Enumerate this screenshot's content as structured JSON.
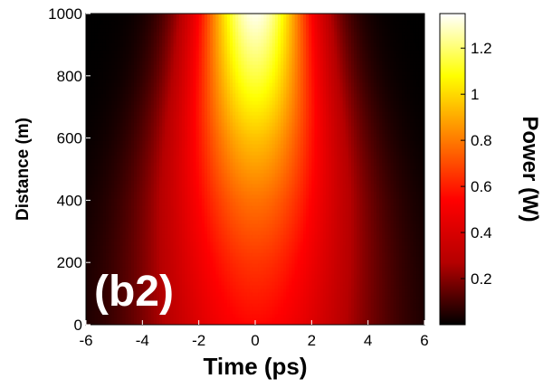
{
  "chart_data": {
    "type": "heatmap",
    "title": "",
    "panel_label": "(b2)",
    "xlabel": "Time (ps)",
    "ylabel": "Distance (m)",
    "colorbar_label": "Power (W)",
    "xlim": [
      -6,
      6
    ],
    "ylim": [
      0,
      1000
    ],
    "x_ticks": [
      -6,
      -4,
      -2,
      0,
      2,
      4,
      6
    ],
    "x_tick_labels": [
      "-6",
      "-4",
      "-2",
      "0",
      "2",
      "4",
      "6"
    ],
    "y_ticks": [
      0,
      200,
      400,
      600,
      800,
      1000
    ],
    "y_tick_labels": [
      "0",
      "200",
      "400",
      "600",
      "800",
      "1000"
    ],
    "colorbar_range": [
      0,
      1.35
    ],
    "colorbar_ticks": [
      0.2,
      0.4,
      0.6,
      0.8,
      1,
      1.2
    ],
    "colorbar_tick_labels": [
      "0.2",
      "0.4",
      "0.6",
      "0.8",
      "1",
      "1.2"
    ],
    "colormap": "hot",
    "colormap_stops": [
      "#000000",
      "#b50000",
      "#ff0000",
      "#ff7f00",
      "#ffff00",
      "#ffffff"
    ],
    "field": {
      "distance": [
        0,
        200,
        400,
        600,
        800,
        1000
      ],
      "peak_power": [
        0.55,
        0.65,
        0.78,
        0.95,
        1.15,
        1.33
      ],
      "pulse_halfwidth_ps": [
        3.6,
        3.4,
        3.1,
        2.7,
        2.3,
        2.0
      ]
    },
    "grid": false
  }
}
